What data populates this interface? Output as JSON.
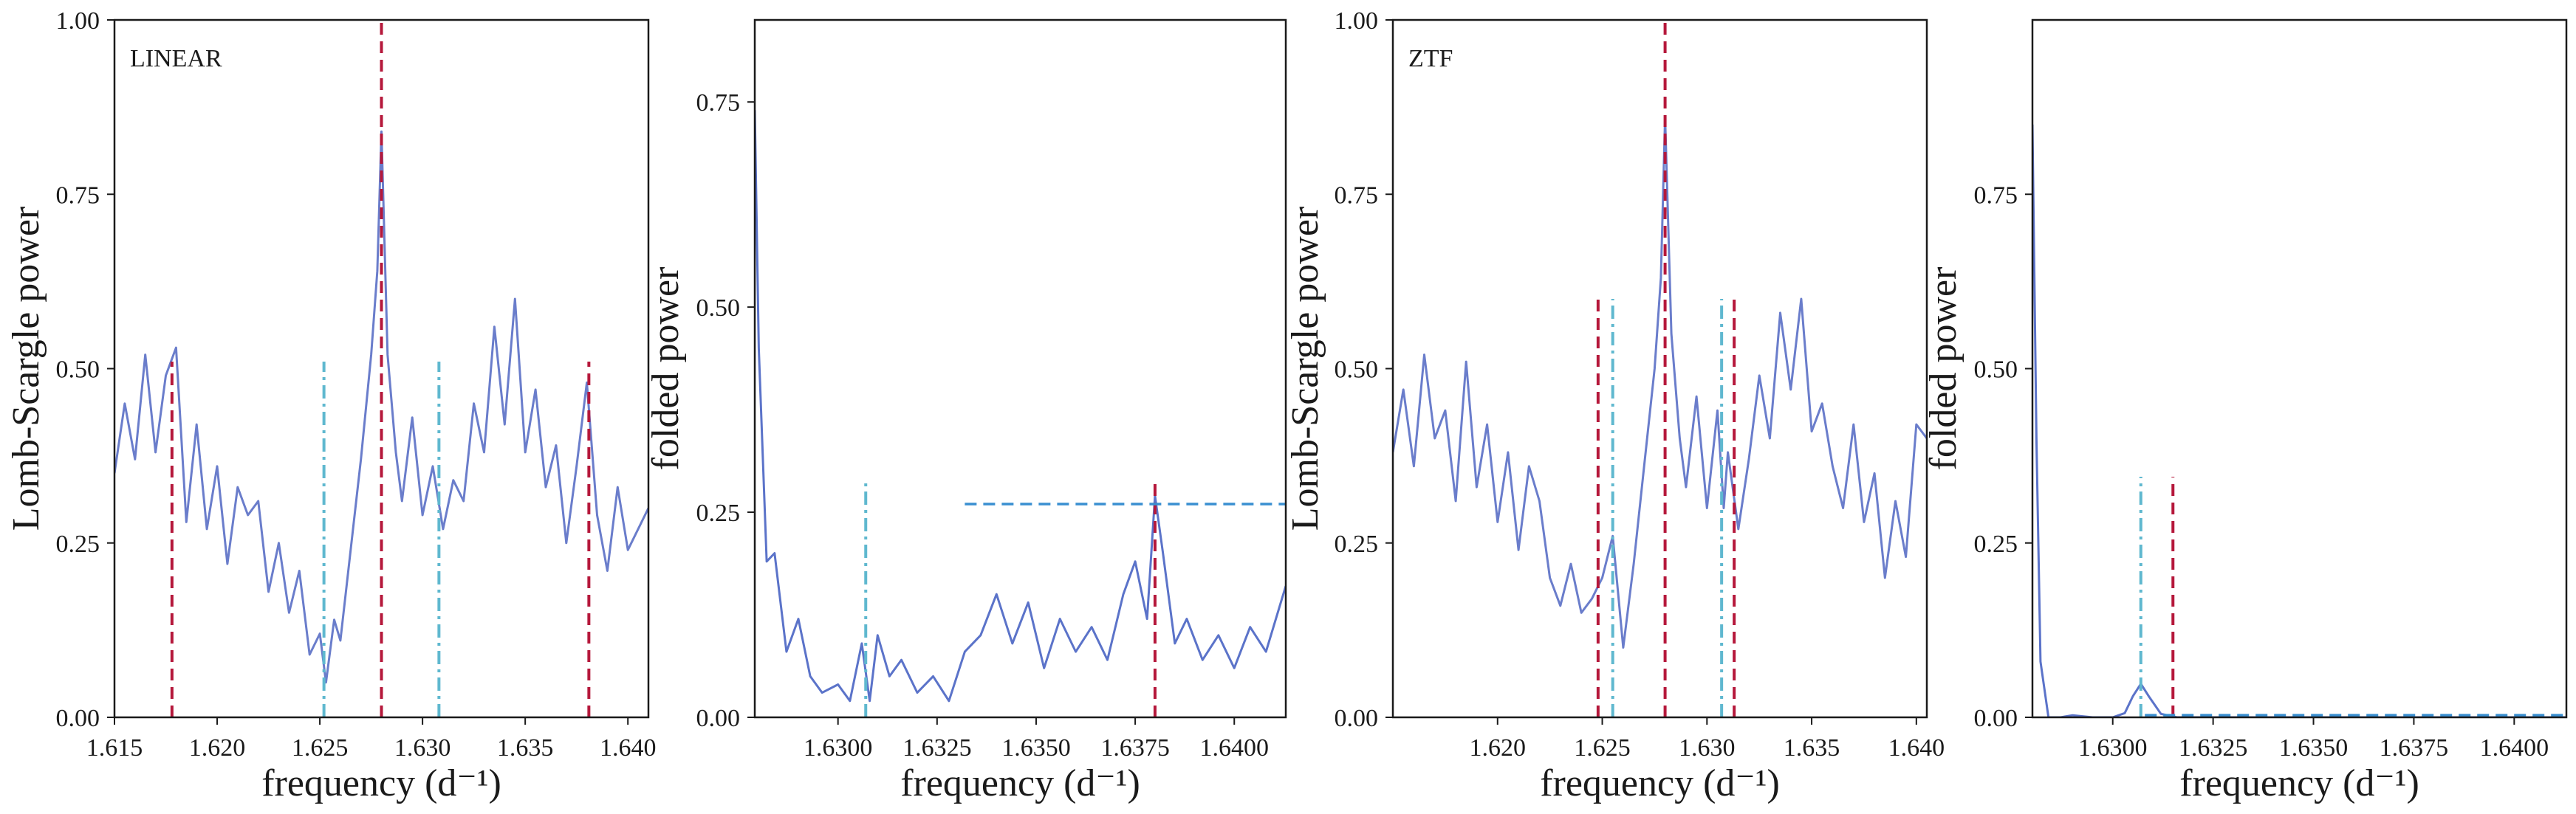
{
  "colors": {
    "periodogram": "#6a7dcb",
    "fold_curve": "#5b73c9",
    "red_marker": "#b5183b",
    "teal_marker": "#5fb8cf",
    "blue_dashed": "#3a8fd1",
    "axes": "#1a1a1a"
  },
  "chart_data": [
    {
      "type": "line",
      "panel_tag": "LINEAR",
      "xlabel": "frequency (d⁻¹)",
      "ylabel": "Lomb-Scargle power",
      "xlim": [
        1.615,
        1.641
      ],
      "ylim": [
        0.0,
        1.0
      ],
      "xticks": [
        "1.615",
        "1.620",
        "1.625",
        "1.630",
        "1.635",
        "1.640"
      ],
      "yticks": [
        "0.00",
        "0.25",
        "0.50",
        "0.75",
        "1.00"
      ],
      "grid": false,
      "series": [
        {
          "style": "solid",
          "color": "#6a7dcb",
          "x": [
            1.615,
            1.6155,
            1.616,
            1.6165,
            1.617,
            1.6175,
            1.618,
            1.6185,
            1.619,
            1.6195,
            1.62,
            1.6205,
            1.621,
            1.6215,
            1.622,
            1.6225,
            1.623,
            1.6235,
            1.624,
            1.6245,
            1.625,
            1.6253,
            1.6257,
            1.626,
            1.6265,
            1.627,
            1.6275,
            1.6278,
            1.628,
            1.6283,
            1.6287,
            1.629,
            1.6295,
            1.63,
            1.6305,
            1.631,
            1.6315,
            1.632,
            1.6325,
            1.633,
            1.6335,
            1.634,
            1.6345,
            1.635,
            1.6355,
            1.636,
            1.6365,
            1.637,
            1.6375,
            1.638,
            1.6385,
            1.639,
            1.6395,
            1.64,
            1.641
          ],
          "y": [
            0.35,
            0.45,
            0.37,
            0.52,
            0.38,
            0.49,
            0.53,
            0.28,
            0.42,
            0.27,
            0.36,
            0.22,
            0.33,
            0.29,
            0.31,
            0.18,
            0.25,
            0.15,
            0.21,
            0.09,
            0.12,
            0.05,
            0.14,
            0.11,
            0.24,
            0.37,
            0.52,
            0.64,
            0.84,
            0.52,
            0.38,
            0.31,
            0.43,
            0.29,
            0.36,
            0.27,
            0.34,
            0.31,
            0.45,
            0.38,
            0.56,
            0.42,
            0.6,
            0.38,
            0.47,
            0.33,
            0.39,
            0.25,
            0.36,
            0.48,
            0.29,
            0.21,
            0.33,
            0.24,
            0.3
          ]
        }
      ],
      "vlines": [
        {
          "x": 1.6178,
          "ymax": 0.51,
          "color": "#b5183b",
          "style": "dashed"
        },
        {
          "x": 1.628,
          "ymax": 1.0,
          "color": "#b5183b",
          "style": "dashed"
        },
        {
          "x": 1.6381,
          "ymax": 0.51,
          "color": "#b5183b",
          "style": "dashed"
        },
        {
          "x": 1.6252,
          "ymax": 0.51,
          "color": "#5fb8cf",
          "style": "dashdot"
        },
        {
          "x": 1.6308,
          "ymax": 0.51,
          "color": "#5fb8cf",
          "style": "dashdot"
        }
      ],
      "hlines": []
    },
    {
      "type": "line",
      "panel_tag": "",
      "xlabel": "frequency (d⁻¹)",
      "ylabel": "folded power",
      "xlim": [
        1.6279,
        1.6413
      ],
      "ylim": [
        0.0,
        0.85
      ],
      "xticks": [
        "1.6300",
        "1.6325",
        "1.6350",
        "1.6375",
        "1.6400"
      ],
      "yticks": [
        "0.00",
        "0.25",
        "0.50",
        "0.75"
      ],
      "grid": false,
      "series": [
        {
          "style": "solid",
          "color": "#5b73c9",
          "x": [
            1.6279,
            1.628,
            1.6282,
            1.6284,
            1.6287,
            1.629,
            1.6293,
            1.6296,
            1.63,
            1.6303,
            1.6306,
            1.6308,
            1.631,
            1.6313,
            1.6316,
            1.632,
            1.6324,
            1.6328,
            1.6332,
            1.6336,
            1.634,
            1.6344,
            1.6348,
            1.6352,
            1.6356,
            1.636,
            1.6364,
            1.6368,
            1.6372,
            1.6375,
            1.6378,
            1.638,
            1.6382,
            1.6385,
            1.6388,
            1.6392,
            1.6396,
            1.64,
            1.6404,
            1.6408,
            1.6413
          ],
          "y": [
            0.74,
            0.45,
            0.19,
            0.2,
            0.08,
            0.12,
            0.05,
            0.03,
            0.04,
            0.02,
            0.09,
            0.02,
            0.1,
            0.05,
            0.07,
            0.03,
            0.05,
            0.02,
            0.08,
            0.1,
            0.15,
            0.09,
            0.14,
            0.06,
            0.12,
            0.08,
            0.11,
            0.07,
            0.15,
            0.19,
            0.12,
            0.27,
            0.2,
            0.09,
            0.12,
            0.07,
            0.1,
            0.06,
            0.11,
            0.08,
            0.16
          ]
        }
      ],
      "vlines": [
        {
          "x": 1.6307,
          "ymax": 0.29,
          "color": "#5fb8cf",
          "style": "dashdot"
        },
        {
          "x": 1.638,
          "ymax": 0.29,
          "color": "#b5183b",
          "style": "dashed"
        }
      ],
      "hlines": [
        {
          "y": 0.26,
          "xmin": 1.6332,
          "xmax": 1.6413,
          "color": "#3a8fd1",
          "style": "dashed"
        }
      ]
    },
    {
      "type": "line",
      "panel_tag": "ZTF",
      "xlabel": "frequency (d⁻¹)",
      "ylabel": "Lomb-Scargle power",
      "xlim": [
        1.615,
        1.6405
      ],
      "ylim": [
        0.0,
        1.0
      ],
      "xticks": [
        "1.620",
        "1.625",
        "1.630",
        "1.635",
        "1.640"
      ],
      "yticks": [
        "0.00",
        "0.25",
        "0.50",
        "0.75",
        "1.00"
      ],
      "grid": false,
      "series": [
        {
          "style": "solid",
          "color": "#6a7dcb",
          "x": [
            1.615,
            1.6155,
            1.616,
            1.6165,
            1.617,
            1.6175,
            1.618,
            1.6185,
            1.619,
            1.6195,
            1.62,
            1.6205,
            1.621,
            1.6215,
            1.622,
            1.6225,
            1.623,
            1.6235,
            1.624,
            1.6245,
            1.625,
            1.6255,
            1.626,
            1.6265,
            1.627,
            1.6275,
            1.6278,
            1.628,
            1.6283,
            1.6287,
            1.629,
            1.6295,
            1.63,
            1.6305,
            1.6308,
            1.631,
            1.6315,
            1.632,
            1.6325,
            1.633,
            1.6335,
            1.634,
            1.6345,
            1.635,
            1.6355,
            1.636,
            1.6365,
            1.637,
            1.6375,
            1.638,
            1.6385,
            1.639,
            1.6395,
            1.64,
            1.6405
          ],
          "y": [
            0.38,
            0.47,
            0.36,
            0.52,
            0.4,
            0.44,
            0.31,
            0.51,
            0.33,
            0.42,
            0.28,
            0.38,
            0.24,
            0.36,
            0.31,
            0.2,
            0.16,
            0.22,
            0.15,
            0.17,
            0.2,
            0.26,
            0.1,
            0.22,
            0.36,
            0.5,
            0.63,
            0.86,
            0.55,
            0.4,
            0.33,
            0.46,
            0.3,
            0.44,
            0.3,
            0.38,
            0.27,
            0.37,
            0.49,
            0.4,
            0.58,
            0.47,
            0.6,
            0.41,
            0.45,
            0.36,
            0.3,
            0.42,
            0.28,
            0.35,
            0.2,
            0.31,
            0.23,
            0.42,
            0.4
          ]
        }
      ],
      "vlines": [
        {
          "x": 1.6248,
          "ymax": 0.6,
          "color": "#b5183b",
          "style": "dashed"
        },
        {
          "x": 1.628,
          "ymax": 1.0,
          "color": "#b5183b",
          "style": "dashed"
        },
        {
          "x": 1.6313,
          "ymax": 0.6,
          "color": "#b5183b",
          "style": "dashed"
        },
        {
          "x": 1.6255,
          "ymax": 0.6,
          "color": "#5fb8cf",
          "style": "dashdot"
        },
        {
          "x": 1.6307,
          "ymax": 0.6,
          "color": "#5fb8cf",
          "style": "dashdot"
        }
      ],
      "hlines": []
    },
    {
      "type": "line",
      "panel_tag": "",
      "xlabel": "frequency (d⁻¹)",
      "ylabel": "folded power",
      "xlim": [
        1.628,
        1.6413
      ],
      "ylim": [
        0.0,
        1.0
      ],
      "xticks": [
        "1.6300",
        "1.6325",
        "1.6350",
        "1.6375",
        "1.6400"
      ],
      "yticks": [
        "0.00",
        "0.25",
        "0.50",
        "0.75"
      ],
      "grid": false,
      "series": [
        {
          "style": "solid",
          "color": "#5b73c9",
          "x": [
            1.628,
            1.6281,
            1.6282,
            1.6284,
            1.6287,
            1.629,
            1.6295,
            1.63,
            1.6303,
            1.6305,
            1.6307,
            1.6309,
            1.6312,
            1.6316,
            1.632,
            1.633,
            1.634,
            1.635,
            1.636,
            1.637,
            1.638,
            1.639,
            1.64,
            1.6413
          ],
          "y": [
            0.85,
            0.4,
            0.08,
            0.0,
            0.0,
            0.003,
            0.0,
            0.0,
            0.006,
            0.03,
            0.048,
            0.03,
            0.005,
            0.0,
            0.0,
            0.0,
            0.0,
            0.0,
            0.0,
            0.0,
            0.0,
            0.0,
            0.0,
            0.0
          ]
        }
      ],
      "vlines": [
        {
          "x": 1.6307,
          "ymax": 0.345,
          "color": "#5fb8cf",
          "style": "dashdot"
        },
        {
          "x": 1.6315,
          "ymax": 0.345,
          "color": "#b5183b",
          "style": "dashed"
        }
      ],
      "hlines": [
        {
          "y": 0.003,
          "xmin": 1.6308,
          "xmax": 1.6413,
          "color": "#3a8fd1",
          "style": "dashed"
        }
      ]
    }
  ]
}
